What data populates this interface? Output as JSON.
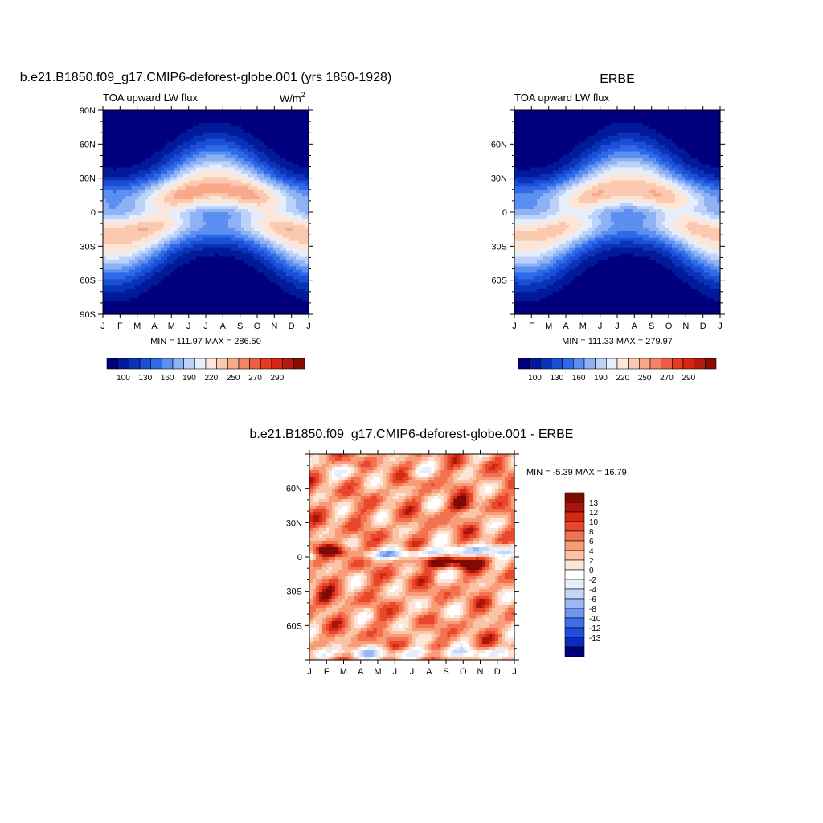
{
  "colors": {
    "abs_palette": [
      "#00007f",
      "#001a99",
      "#0a33b8",
      "#1a4fd6",
      "#2e6ae8",
      "#5b8ff0",
      "#8fb2f5",
      "#bcd2f8",
      "#e6eefb",
      "#fde6d8",
      "#fbc9b0",
      "#f8a98a",
      "#f3846a",
      "#ee5e45",
      "#e63a22",
      "#d62612",
      "#b51a0a",
      "#8a0d03"
    ],
    "diff_palette": [
      "#00007f",
      "#0a2bbd",
      "#1f4de0",
      "#3f6fec",
      "#6f95f0",
      "#9bb8f4",
      "#c4d7f8",
      "#e6eefb",
      "#ffffff",
      "#fde6d8",
      "#fbc4a6",
      "#f79d7a",
      "#f2724f",
      "#e9472c",
      "#d22b15",
      "#a8150a",
      "#7d0b04"
    ]
  },
  "chart_data": [
    {
      "type": "heatmap",
      "title": "b.e21.B1850.f09_g17.CMIP6-deforest-globe.001 (yrs 1850-1928)",
      "left_string": "TOA upward LW flux",
      "right_string": "W/m",
      "right_string_sup": "2",
      "x_ticklabels": [
        "J",
        "F",
        "M",
        "A",
        "M",
        "J",
        "J",
        "A",
        "S",
        "O",
        "N",
        "D",
        "J"
      ],
      "y_ticklabels": [
        "90N",
        "60N",
        "30N",
        "0",
        "30S",
        "60S",
        "90S"
      ],
      "y_tick_values": [
        90,
        60,
        30,
        0,
        -30,
        -60,
        -90
      ],
      "ylim": [
        -90,
        90
      ],
      "stats_label": "MIN = 111.97 MAX = 286.50",
      "min": 111.97,
      "max": 286.5,
      "levels": [
        100,
        115,
        130,
        145,
        160,
        175,
        190,
        205,
        220,
        235,
        250,
        260,
        270,
        280,
        290,
        295,
        300
      ],
      "colorbar_labels": [
        "100",
        "130",
        "160",
        "190",
        "220",
        "250",
        "270",
        "290"
      ]
    },
    {
      "type": "heatmap",
      "title": "ERBE",
      "left_string": "TOA upward LW flux",
      "x_ticklabels": [
        "J",
        "F",
        "M",
        "A",
        "M",
        "J",
        "J",
        "A",
        "S",
        "O",
        "N",
        "D",
        "J"
      ],
      "y_ticklabels": [
        "60N",
        "30N",
        "0",
        "30S",
        "60S"
      ],
      "y_tick_values": [
        60,
        30,
        0,
        -30,
        -60
      ],
      "ylim": [
        -90,
        90
      ],
      "stats_label": "MIN = 111.33 MAX = 279.97",
      "min": 111.33,
      "max": 279.97,
      "levels": [
        100,
        115,
        130,
        145,
        160,
        175,
        190,
        205,
        220,
        235,
        250,
        260,
        270,
        280,
        290,
        295,
        300
      ],
      "colorbar_labels": [
        "100",
        "130",
        "160",
        "190",
        "220",
        "250",
        "270",
        "290"
      ]
    },
    {
      "type": "heatmap",
      "title": "b.e21.B1850.f09_g17.CMIP6-deforest-globe.001 - ERBE",
      "x_ticklabels": [
        "J",
        "F",
        "M",
        "A",
        "M",
        "J",
        "J",
        "A",
        "S",
        "O",
        "N",
        "D",
        "J"
      ],
      "y_ticklabels": [
        "60N",
        "30N",
        "0",
        "30S",
        "60S"
      ],
      "y_tick_values": [
        60,
        30,
        0,
        -30,
        -60
      ],
      "ylim": [
        -90,
        90
      ],
      "stats_label": "MIN =  -5.39 MAX =  16.79",
      "min": -5.39,
      "max": 16.79,
      "levels": [
        -14,
        -13,
        -12,
        -10,
        -8,
        -6,
        -4,
        -2,
        0,
        2,
        4,
        6,
        8,
        10,
        12,
        13,
        14
      ],
      "colorbar_labels": [
        "13",
        "12",
        "10",
        "8",
        "6",
        "4",
        "2",
        "0",
        "-2",
        "-4",
        "-6",
        "-8",
        "-10",
        "-12",
        "-13"
      ]
    }
  ]
}
